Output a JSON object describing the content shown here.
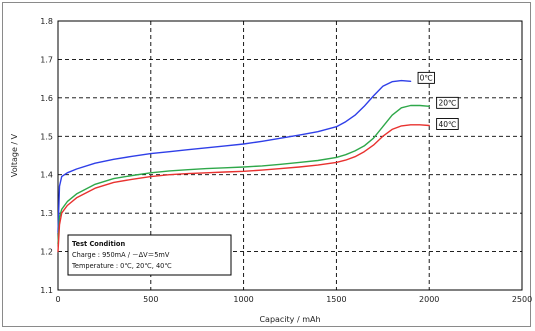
{
  "chart_data": {
    "type": "line",
    "title": "",
    "xlabel": "Capacity / mAh",
    "ylabel": "Voltage / V",
    "xlim": [
      0,
      2500
    ],
    "ylim": [
      1.1,
      1.8
    ],
    "x_ticks": [
      "0",
      "500",
      "1000",
      "1500",
      "2000",
      "2500"
    ],
    "y_ticks": [
      "1.1",
      "1.2",
      "1.3",
      "1.4",
      "1.5",
      "1.6",
      "1.7",
      "1.8"
    ],
    "grid": true,
    "series": [
      {
        "name": "0℃",
        "color": "#2f3fe8",
        "points": [
          [
            0,
            1.25
          ],
          [
            8,
            1.37
          ],
          [
            20,
            1.395
          ],
          [
            50,
            1.405
          ],
          [
            100,
            1.415
          ],
          [
            200,
            1.43
          ],
          [
            300,
            1.44
          ],
          [
            400,
            1.448
          ],
          [
            500,
            1.455
          ],
          [
            600,
            1.46
          ],
          [
            700,
            1.465
          ],
          [
            800,
            1.47
          ],
          [
            900,
            1.475
          ],
          [
            1000,
            1.48
          ],
          [
            1100,
            1.487
          ],
          [
            1200,
            1.495
          ],
          [
            1300,
            1.503
          ],
          [
            1400,
            1.512
          ],
          [
            1500,
            1.525
          ],
          [
            1550,
            1.538
          ],
          [
            1600,
            1.555
          ],
          [
            1650,
            1.578
          ],
          [
            1700,
            1.605
          ],
          [
            1750,
            1.63
          ],
          [
            1800,
            1.642
          ],
          [
            1850,
            1.645
          ],
          [
            1900,
            1.643
          ]
        ]
      },
      {
        "name": "20℃",
        "color": "#2fa84a",
        "points": [
          [
            0,
            1.22
          ],
          [
            8,
            1.29
          ],
          [
            20,
            1.31
          ],
          [
            50,
            1.33
          ],
          [
            100,
            1.35
          ],
          [
            200,
            1.375
          ],
          [
            300,
            1.39
          ],
          [
            400,
            1.398
          ],
          [
            500,
            1.405
          ],
          [
            600,
            1.41
          ],
          [
            700,
            1.413
          ],
          [
            800,
            1.416
          ],
          [
            900,
            1.418
          ],
          [
            1000,
            1.42
          ],
          [
            1100,
            1.423
          ],
          [
            1200,
            1.427
          ],
          [
            1300,
            1.432
          ],
          [
            1400,
            1.437
          ],
          [
            1500,
            1.445
          ],
          [
            1550,
            1.452
          ],
          [
            1600,
            1.462
          ],
          [
            1650,
            1.475
          ],
          [
            1700,
            1.495
          ],
          [
            1750,
            1.525
          ],
          [
            1800,
            1.555
          ],
          [
            1850,
            1.574
          ],
          [
            1900,
            1.58
          ],
          [
            1950,
            1.58
          ],
          [
            2000,
            1.578
          ]
        ]
      },
      {
        "name": "40℃",
        "color": "#e8322f",
        "points": [
          [
            0,
            1.2
          ],
          [
            8,
            1.27
          ],
          [
            20,
            1.3
          ],
          [
            50,
            1.32
          ],
          [
            100,
            1.34
          ],
          [
            200,
            1.365
          ],
          [
            300,
            1.38
          ],
          [
            400,
            1.388
          ],
          [
            500,
            1.395
          ],
          [
            600,
            1.4
          ],
          [
            700,
            1.403
          ],
          [
            800,
            1.405
          ],
          [
            900,
            1.407
          ],
          [
            1000,
            1.409
          ],
          [
            1100,
            1.412
          ],
          [
            1200,
            1.416
          ],
          [
            1300,
            1.42
          ],
          [
            1400,
            1.425
          ],
          [
            1500,
            1.432
          ],
          [
            1550,
            1.438
          ],
          [
            1600,
            1.447
          ],
          [
            1650,
            1.46
          ],
          [
            1700,
            1.477
          ],
          [
            1750,
            1.5
          ],
          [
            1800,
            1.518
          ],
          [
            1850,
            1.527
          ],
          [
            1900,
            1.53
          ],
          [
            1950,
            1.53
          ],
          [
            2000,
            1.528
          ]
        ]
      }
    ],
    "series_labels": [
      {
        "text": "0℃",
        "x": 1940,
        "y": 1.652
      },
      {
        "text": "20℃",
        "x": 2040,
        "y": 1.587
      },
      {
        "text": "40℃",
        "x": 2040,
        "y": 1.532
      }
    ],
    "legend_box": {
      "title": "Test Condition",
      "line1": "Charge     : 950mA / －ΔV＝5mV",
      "line2": "Temperature : 0℃, 20℃, 40℃"
    }
  }
}
